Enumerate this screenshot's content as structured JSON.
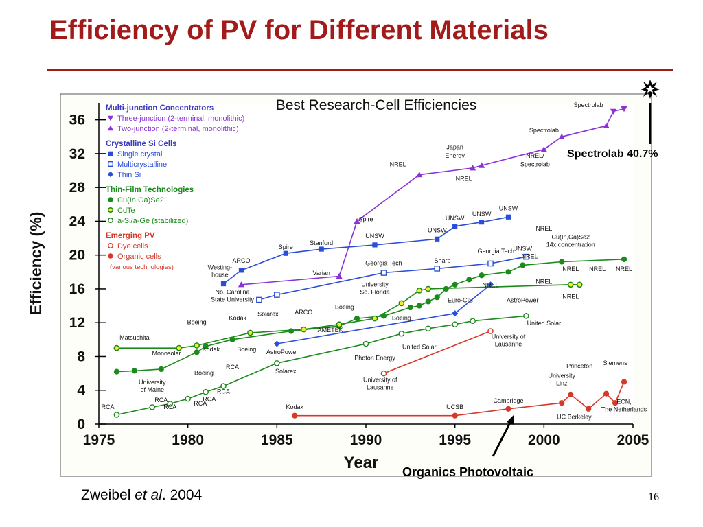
{
  "slide": {
    "title": "Efficiency of PV for Different Materials",
    "citation": {
      "author": "Zweibel ",
      "etal": "et al",
      "rest": ". 2004"
    },
    "slide_number": "16"
  },
  "callouts": {
    "spectrolab": "Spectrolab 40.7%",
    "organics": "Organics Photovoltaic"
  },
  "chart_data": {
    "type": "line",
    "title": "Best Research-Cell Efficiencies",
    "xlabel": "Year",
    "ylabel": "Efficiency (%)",
    "xlim": [
      1975,
      2005
    ],
    "ylim": [
      0,
      38
    ],
    "x_ticks": [
      1975,
      1980,
      1985,
      1990,
      1995,
      2000,
      2005
    ],
    "y_ticks": [
      0,
      4,
      8,
      12,
      16,
      20,
      24,
      28,
      32,
      36
    ],
    "grid": false,
    "legend": {
      "placement": "top-left",
      "groups": [
        {
          "title": "Multi-junction Concentrators",
          "color": "#3b3bbf",
          "items": [
            {
              "marker": "triangle-down",
              "label": "Three-junction (2-terminal, monolithic)",
              "color": "#8a32d8"
            },
            {
              "marker": "triangle-up",
              "label": "Two-junction (2-terminal, monolithic)",
              "color": "#8a32d8"
            }
          ]
        },
        {
          "title": "Crystalline Si Cells",
          "color": "#3b3bbf",
          "items": [
            {
              "marker": "square",
              "label": "Single crystal",
              "color": "#2b4ed8"
            },
            {
              "marker": "square-open",
              "label": "Multicrystalline",
              "color": "#2b4ed8"
            },
            {
              "marker": "diamond",
              "label": "Thin Si",
              "color": "#2b4ed8"
            }
          ]
        },
        {
          "title": "Thin-Film Technologies",
          "color": "#1c8a1c",
          "items": [
            {
              "marker": "circle",
              "label": "Cu(In,Ga)Se2",
              "color": "#1c8a1c"
            },
            {
              "marker": "circle-yellow",
              "label": "CdTe",
              "color": "#1c8a1c"
            },
            {
              "marker": "circle-open",
              "label": "a-Si/a-Ge (stabilized)",
              "color": "#1c8a1c"
            }
          ]
        },
        {
          "title": "Emerging PV",
          "color": "#d43a2a",
          "items": [
            {
              "marker": "circle-open",
              "label": "Dye cells",
              "color": "#d43a2a"
            },
            {
              "marker": "circle",
              "label": "Organic cells",
              "color": "#d43a2a"
            },
            {
              "marker": "none",
              "label": "(various technologies)",
              "color": "#d43a2a"
            }
          ]
        }
      ]
    },
    "series": [
      {
        "name": "Multi-junction Concentrators",
        "color": "#8a32d8",
        "marker": "triangle",
        "x": [
          1983,
          1988.5,
          1989.5,
          1993,
          1996,
          1996.5,
          2000,
          2001,
          2003.5,
          2003.9,
          2004.5
        ],
        "y": [
          16.5,
          17.5,
          24,
          29.5,
          30.3,
          30.6,
          32.5,
          34,
          35.3,
          37,
          37.3
        ]
      },
      {
        "name": "Single crystal Si",
        "color": "#2b4ed8",
        "marker": "square",
        "x": [
          1982,
          1983,
          1985.5,
          1987.5,
          1990.5,
          1994,
          1995,
          1996.5,
          1998
        ],
        "y": [
          16.6,
          18.2,
          20.2,
          20.7,
          21.2,
          21.9,
          23.4,
          23.9,
          24.5
        ]
      },
      {
        "name": "Multicrystalline Si",
        "color": "#2b4ed8",
        "marker": "square-open",
        "x": [
          1984,
          1985,
          1991,
          1994,
          1997,
          1999
        ],
        "y": [
          14.7,
          15.3,
          17.9,
          18.4,
          19.0,
          19.8
        ]
      },
      {
        "name": "Thin Si",
        "color": "#2b4ed8",
        "marker": "diamond",
        "x": [
          1985,
          1995,
          1997
        ],
        "y": [
          9.5,
          13.1,
          16.5
        ]
      },
      {
        "name": "Cu(In,Ga)Se2",
        "color": "#1c8a1c",
        "marker": "circle",
        "x": [
          1976,
          1977,
          1978.5,
          1980.5,
          1981,
          1982.5,
          1985.8,
          1988.5,
          1989.5,
          1991,
          1992.5,
          1993,
          1993.5,
          1994,
          1994.5,
          1995,
          1995.8,
          1996.5,
          1998,
          1998.8,
          2001,
          2004.5
        ],
        "y": [
          6.2,
          6.3,
          6.5,
          8.5,
          9.2,
          10.0,
          11.0,
          11.6,
          12.5,
          12.8,
          13.8,
          14.0,
          14.5,
          15.0,
          16.0,
          16.5,
          17.1,
          17.6,
          18.0,
          18.8,
          19.2,
          19.5
        ]
      },
      {
        "name": "CdTe",
        "color": "#1c8a1c",
        "marker": "circle-yellow",
        "x": [
          1976,
          1979.5,
          1980.5,
          1983.5,
          1986.5,
          1988.5,
          1990.5,
          1992,
          1993,
          1993.5,
          2001.5,
          2002
        ],
        "y": [
          9.0,
          9.0,
          9.3,
          10.8,
          11.2,
          11.8,
          12.5,
          14.3,
          15.8,
          16.0,
          16.5,
          16.5
        ]
      },
      {
        "name": "a-Si/a-Ge (stabilized)",
        "color": "#1c8a1c",
        "marker": "circle-open",
        "x": [
          1976,
          1978,
          1979,
          1980,
          1981,
          1982,
          1985,
          1990,
          1992,
          1993.5,
          1995,
          1996,
          1999
        ],
        "y": [
          1.1,
          2.0,
          2.4,
          3.0,
          3.8,
          4.5,
          7.2,
          9.5,
          10.7,
          11.3,
          11.8,
          12.2,
          12.8
        ]
      },
      {
        "name": "Dye cells",
        "color": "#d43a2a",
        "marker": "circle-open",
        "x": [
          1991,
          1997
        ],
        "y": [
          6.0,
          11.0
        ]
      },
      {
        "name": "Organic cells",
        "color": "#d43a2a",
        "marker": "circle",
        "x": [
          1986,
          1995,
          1998,
          2001,
          2001.5,
          2002.5,
          2003.5,
          2004,
          2004.5
        ],
        "y": [
          1.0,
          1.0,
          1.8,
          2.5,
          3.5,
          1.8,
          3.6,
          2.5,
          5.0
        ]
      }
    ],
    "annotations": [
      {
        "text": "Spectrolab",
        "x": 2002.5,
        "y": 37.5
      },
      {
        "text": "Spectrolab",
        "x": 2000,
        "y": 34.5
      },
      {
        "text": "NREL/",
        "x": 1999.5,
        "y": 31.5
      },
      {
        "text": "Spectrolab",
        "x": 1999.5,
        "y": 30.5
      },
      {
        "text": "Japan",
        "x": 1995,
        "y": 32.5
      },
      {
        "text": "Energy",
        "x": 1995,
        "y": 31.5
      },
      {
        "text": "NREL",
        "x": 1991.8,
        "y": 30.5
      },
      {
        "text": "NREL",
        "x": 1995.5,
        "y": 28.8
      },
      {
        "text": "Spire",
        "x": 1990,
        "y": 24.0
      },
      {
        "text": "Varian",
        "x": 1987.5,
        "y": 17.6
      },
      {
        "text": "Westing-",
        "x": 1981.8,
        "y": 18.3
      },
      {
        "text": "house",
        "x": 1981.8,
        "y": 17.4
      },
      {
        "text": "ARCO",
        "x": 1983,
        "y": 19.1
      },
      {
        "text": "Spire",
        "x": 1985.5,
        "y": 20.7
      },
      {
        "text": "Stanford",
        "x": 1987.5,
        "y": 21.2
      },
      {
        "text": "UNSW",
        "x": 1990.5,
        "y": 22.0
      },
      {
        "text": "UNSW",
        "x": 1994,
        "y": 22.7
      },
      {
        "text": "UNSW",
        "x": 1995,
        "y": 24.1
      },
      {
        "text": "UNSW",
        "x": 1996.5,
        "y": 24.6
      },
      {
        "text": "UNSW",
        "x": 1998,
        "y": 25.3
      },
      {
        "text": "UNSW",
        "x": 1998.8,
        "y": 20.5
      },
      {
        "text": "Georgia Tech",
        "x": 1997.3,
        "y": 20.2
      },
      {
        "text": "Georgia Tech",
        "x": 1991,
        "y": 18.8
      },
      {
        "text": "Sharp",
        "x": 1994.3,
        "y": 19.1
      },
      {
        "text": "NREL",
        "x": 1999.2,
        "y": 19.6
      },
      {
        "text": "NREL",
        "x": 2001.5,
        "y": 18.1
      },
      {
        "text": "NREL",
        "x": 2003,
        "y": 18.1
      },
      {
        "text": "NREL",
        "x": 2004.5,
        "y": 18.1
      },
      {
        "text": "NREL",
        "x": 2000,
        "y": 22.9
      },
      {
        "text": "Cu(In,Ga)Se2",
        "x": 2001.5,
        "y": 21.9
      },
      {
        "text": "14x concentration",
        "x": 2001.5,
        "y": 21.0
      },
      {
        "text": "NREL",
        "x": 2000,
        "y": 16.6
      },
      {
        "text": "NREL",
        "x": 2001.5,
        "y": 14.8
      },
      {
        "text": "NREL",
        "x": 1997,
        "y": 16.2
      },
      {
        "text": "AstroPower",
        "x": 1998.8,
        "y": 14.4
      },
      {
        "text": "Euro-CIS",
        "x": 1995.3,
        "y": 14.4
      },
      {
        "text": "University",
        "x": 1990.5,
        "y": 16.3
      },
      {
        "text": "So. Florida",
        "x": 1990.5,
        "y": 15.4
      },
      {
        "text": "No. Carolina",
        "x": 1982.5,
        "y": 15.4
      },
      {
        "text": "State University",
        "x": 1982.5,
        "y": 14.5
      },
      {
        "text": "Solarex",
        "x": 1984.5,
        "y": 12.8
      },
      {
        "text": "ARCO",
        "x": 1986.5,
        "y": 13.0
      },
      {
        "text": "Boeing",
        "x": 1988.8,
        "y": 13.6
      },
      {
        "text": "Boeing",
        "x": 1992,
        "y": 12.3
      },
      {
        "text": "Kodak",
        "x": 1982.8,
        "y": 12.3
      },
      {
        "text": "Boeing",
        "x": 1980.5,
        "y": 11.8
      },
      {
        "text": "AMETEK",
        "x": 1988,
        "y": 10.9
      },
      {
        "text": "Matsushita",
        "x": 1977,
        "y": 10.0
      },
      {
        "text": "Monosolar",
        "x": 1978.8,
        "y": 8.1
      },
      {
        "text": "Kodak",
        "x": 1981.3,
        "y": 8.6
      },
      {
        "text": "Boeing",
        "x": 1983.3,
        "y": 8.6
      },
      {
        "text": "AstroPower",
        "x": 1985.3,
        "y": 8.3
      },
      {
        "text": "Photon Energy",
        "x": 1990.5,
        "y": 7.6
      },
      {
        "text": "United Solar",
        "x": 1993,
        "y": 8.9
      },
      {
        "text": "United Solar",
        "x": 2000,
        "y": 11.7
      },
      {
        "text": "University of",
        "x": 1998,
        "y": 10.1
      },
      {
        "text": "Lausanne",
        "x": 1998,
        "y": 9.2
      },
      {
        "text": "University of",
        "x": 1990.8,
        "y": 5.0
      },
      {
        "text": "Lausanne",
        "x": 1990.8,
        "y": 4.1
      },
      {
        "text": "Boeing",
        "x": 1980.9,
        "y": 5.8
      },
      {
        "text": "RCA",
        "x": 1982.5,
        "y": 6.5
      },
      {
        "text": "Solarex",
        "x": 1985.5,
        "y": 6.0
      },
      {
        "text": "RCA",
        "x": 1982,
        "y": 3.6
      },
      {
        "text": "RCA",
        "x": 1980.7,
        "y": 2.2
      },
      {
        "text": "RCA",
        "x": 1979,
        "y": 1.8
      },
      {
        "text": "RCA",
        "x": 1978.5,
        "y": 2.6
      },
      {
        "text": "RCA",
        "x": 1981.2,
        "y": 2.7
      },
      {
        "text": "RCA",
        "x": 1975.5,
        "y": 1.8
      },
      {
        "text": "University",
        "x": 1978,
        "y": 4.7
      },
      {
        "text": "of Maine",
        "x": 1978,
        "y": 3.8
      },
      {
        "text": "Kodak",
        "x": 1986,
        "y": 1.8
      },
      {
        "text": "UCSB",
        "x": 1995,
        "y": 1.8
      },
      {
        "text": "Cambridge",
        "x": 1998,
        "y": 2.5
      },
      {
        "text": "University",
        "x": 2001,
        "y": 5.5
      },
      {
        "text": "Linz",
        "x": 2001,
        "y": 4.6
      },
      {
        "text": "Princeton",
        "x": 2002,
        "y": 6.6
      },
      {
        "text": "Siemens",
        "x": 2004,
        "y": 7.0
      },
      {
        "text": "ECN,",
        "x": 2004.5,
        "y": 2.4
      },
      {
        "text": "The Netherlands",
        "x": 2004.5,
        "y": 1.5
      },
      {
        "text": "UC Berkeley",
        "x": 2001.7,
        "y": 0.6
      }
    ]
  }
}
